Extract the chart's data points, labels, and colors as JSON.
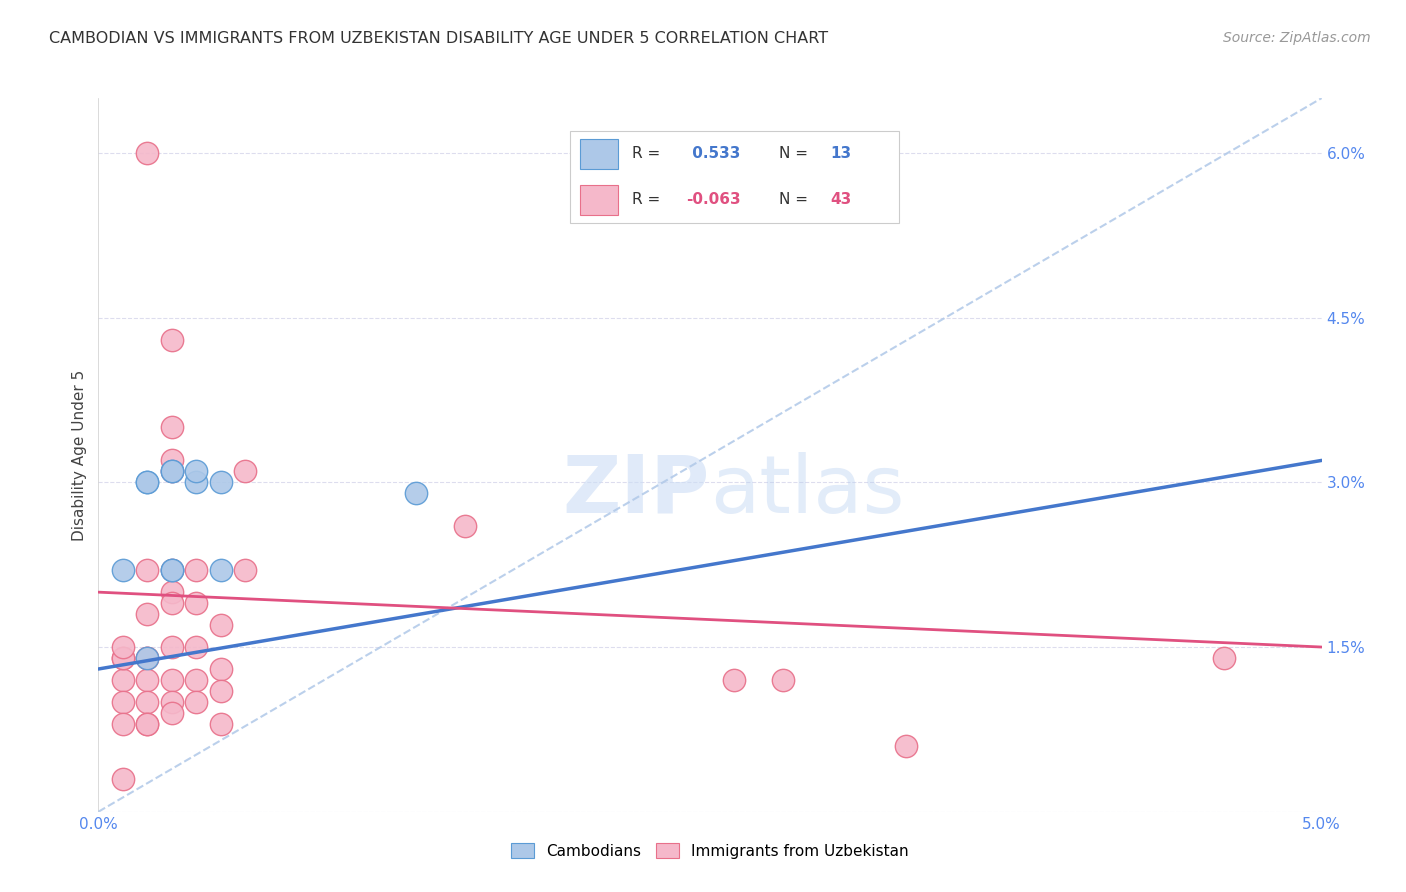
{
  "title": "CAMBODIAN VS IMMIGRANTS FROM UZBEKISTAN DISABILITY AGE UNDER 5 CORRELATION CHART",
  "source": "Source: ZipAtlas.com",
  "ylabel": "Disability Age Under 5",
  "xlim": [
    0.0,
    0.05
  ],
  "ylim": [
    0.0,
    0.065
  ],
  "xticks": [
    0.0,
    0.01,
    0.02,
    0.03,
    0.04,
    0.05
  ],
  "xticklabels": [
    "0.0%",
    "",
    "",
    "",
    "",
    "5.0%"
  ],
  "yticks": [
    0.0,
    0.015,
    0.03,
    0.045,
    0.06
  ],
  "yticklabels": [
    "",
    "1.5%",
    "3.0%",
    "4.5%",
    "6.0%"
  ],
  "legend_r_cambodian": "0.533",
  "legend_n_cambodian": "13",
  "legend_r_uzbekistan": "-0.063",
  "legend_n_uzbekistan": "43",
  "cambodian_fill": "#adc8e8",
  "uzbekistan_fill": "#f5b8ca",
  "cambodian_edge": "#5b9bd5",
  "uzbekistan_edge": "#e8708a",
  "cambodian_line": "#4477cc",
  "uzbekistan_line": "#e05080",
  "trendline_color": "#b0c8e8",
  "watermark_color": "#ccddf5",
  "cambodian_scatter": [
    [
      0.001,
      0.022
    ],
    [
      0.002,
      0.014
    ],
    [
      0.002,
      0.03
    ],
    [
      0.002,
      0.03
    ],
    [
      0.003,
      0.022
    ],
    [
      0.003,
      0.022
    ],
    [
      0.003,
      0.031
    ],
    [
      0.003,
      0.031
    ],
    [
      0.004,
      0.03
    ],
    [
      0.004,
      0.031
    ],
    [
      0.005,
      0.022
    ],
    [
      0.005,
      0.03
    ],
    [
      0.013,
      0.029
    ]
  ],
  "uzbekistan_scatter": [
    [
      0.002,
      0.06
    ],
    [
      0.001,
      0.012
    ],
    [
      0.001,
      0.014
    ],
    [
      0.001,
      0.01
    ],
    [
      0.001,
      0.008
    ],
    [
      0.001,
      0.014
    ],
    [
      0.001,
      0.015
    ],
    [
      0.001,
      0.003
    ],
    [
      0.003,
      0.035
    ],
    [
      0.002,
      0.022
    ],
    [
      0.002,
      0.018
    ],
    [
      0.002,
      0.014
    ],
    [
      0.002,
      0.014
    ],
    [
      0.002,
      0.012
    ],
    [
      0.002,
      0.01
    ],
    [
      0.002,
      0.008
    ],
    [
      0.002,
      0.008
    ],
    [
      0.003,
      0.043
    ],
    [
      0.003,
      0.031
    ],
    [
      0.003,
      0.032
    ],
    [
      0.003,
      0.022
    ],
    [
      0.003,
      0.02
    ],
    [
      0.003,
      0.019
    ],
    [
      0.003,
      0.015
    ],
    [
      0.003,
      0.012
    ],
    [
      0.003,
      0.01
    ],
    [
      0.003,
      0.009
    ],
    [
      0.004,
      0.022
    ],
    [
      0.004,
      0.019
    ],
    [
      0.004,
      0.015
    ],
    [
      0.004,
      0.012
    ],
    [
      0.004,
      0.01
    ],
    [
      0.005,
      0.017
    ],
    [
      0.005,
      0.013
    ],
    [
      0.005,
      0.011
    ],
    [
      0.005,
      0.008
    ],
    [
      0.006,
      0.031
    ],
    [
      0.006,
      0.022
    ],
    [
      0.015,
      0.026
    ],
    [
      0.026,
      0.012
    ],
    [
      0.028,
      0.012
    ],
    [
      0.033,
      0.006
    ],
    [
      0.046,
      0.014
    ]
  ],
  "cam_line_x0": 0.0,
  "cam_line_y0": 0.013,
  "cam_line_x1": 0.05,
  "cam_line_y1": 0.032,
  "uzb_line_x0": 0.0,
  "uzb_line_y0": 0.02,
  "uzb_line_x1": 0.05,
  "uzb_line_y1": 0.015
}
